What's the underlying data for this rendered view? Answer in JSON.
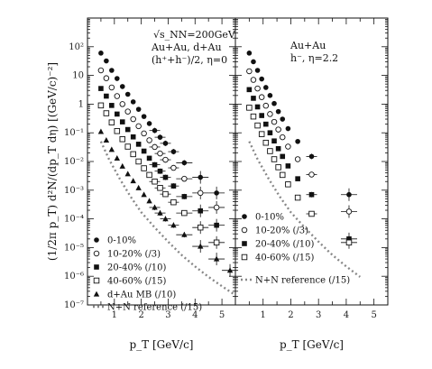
{
  "chart_data": [
    {
      "type": "scatter",
      "xlabel": "p_T [GeV/c]",
      "ylabel": "(1/2π p_T) d²N/(dp_T dη) [(GeV/c)⁻²]",
      "ytype": "log",
      "xlim": [
        0,
        5.5
      ],
      "ylim": [
        1e-07,
        1000
      ],
      "xticks": [
        "1",
        "2",
        "3",
        "4",
        "5"
      ],
      "yticks": [
        "10²",
        "10",
        "1",
        "10⁻¹",
        "10⁻²",
        "10⁻³",
        "10⁻⁴",
        "10⁻⁵",
        "10⁻⁶",
        "10⁻⁷"
      ],
      "annotations": [
        "√s_NN=200GeV",
        "Au+Au, d+Au",
        "(h⁺+h⁻)/2, η=0"
      ],
      "series": [
        {
          "name": "0-10%",
          "marker": "filled-circle",
          "x": [
            0.5,
            0.7,
            0.9,
            1.1,
            1.3,
            1.5,
            1.7,
            1.9,
            2.1,
            2.3,
            2.5,
            2.7,
            2.9,
            3.2,
            3.6,
            4.2,
            4.8
          ],
          "y": [
            60,
            32,
            15,
            7.8,
            4.1,
            2.2,
            1.2,
            0.66,
            0.37,
            0.21,
            0.12,
            0.07,
            0.043,
            0.022,
            0.009,
            0.0028,
            0.0008
          ]
        },
        {
          "name": "10-20% (/3)",
          "marker": "open-circle",
          "x": [
            0.5,
            0.7,
            0.9,
            1.1,
            1.3,
            1.5,
            1.7,
            1.9,
            2.1,
            2.3,
            2.5,
            2.7,
            2.9,
            3.2,
            3.6,
            4.2,
            4.8
          ],
          "y": [
            15,
            8,
            3.8,
            1.9,
            1.0,
            0.55,
            0.3,
            0.17,
            0.095,
            0.055,
            0.032,
            0.019,
            0.0115,
            0.006,
            0.0025,
            0.0008,
            0.00025
          ]
        },
        {
          "name": "20-40% (/10)",
          "marker": "filled-square",
          "x": [
            0.5,
            0.7,
            0.9,
            1.1,
            1.3,
            1.5,
            1.7,
            1.9,
            2.1,
            2.3,
            2.5,
            2.7,
            2.9,
            3.2,
            3.6,
            4.2,
            4.8
          ],
          "y": [
            3.5,
            1.9,
            0.9,
            0.45,
            0.24,
            0.13,
            0.072,
            0.04,
            0.023,
            0.013,
            0.0077,
            0.0046,
            0.0028,
            0.0014,
            0.0006,
            0.00019,
            6e-05
          ]
        },
        {
          "name": "40-60% (/15)",
          "marker": "open-square",
          "x": [
            0.5,
            0.7,
            0.9,
            1.1,
            1.3,
            1.5,
            1.7,
            1.9,
            2.1,
            2.3,
            2.5,
            2.7,
            2.9,
            3.2,
            3.6,
            4.2,
            4.8
          ],
          "y": [
            0.9,
            0.48,
            0.23,
            0.115,
            0.06,
            0.033,
            0.018,
            0.01,
            0.0058,
            0.0034,
            0.002,
            0.0012,
            0.00073,
            0.00038,
            0.00016,
            5e-05,
            1.5e-05
          ]
        },
        {
          "name": "d+Au MB (/10)",
          "marker": "filled-triangle",
          "x": [
            0.5,
            0.7,
            0.9,
            1.1,
            1.3,
            1.5,
            1.7,
            1.9,
            2.1,
            2.3,
            2.5,
            2.7,
            2.9,
            3.2,
            3.6,
            4.2,
            4.8,
            5.3
          ],
          "y": [
            0.11,
            0.055,
            0.026,
            0.013,
            0.0068,
            0.0037,
            0.0021,
            0.0012,
            0.0007,
            0.00042,
            0.00025,
            0.00016,
            0.0001,
            6e-05,
            2.8e-05,
            1.1e-05,
            4e-06,
            1.6e-06
          ]
        },
        {
          "name": "N+N reference (/15)",
          "marker": "dashed-line",
          "x": [
            0.5,
            0.8,
            1.2,
            1.6,
            2.0,
            2.5,
            3.0,
            3.5,
            4.0,
            4.5,
            5.0,
            5.5
          ],
          "y": [
            0.05,
            0.012,
            0.0025,
            0.0006,
            0.00017,
            5e-05,
            1.6e-05,
            5.5e-06,
            2.2e-06,
            9.5e-07,
            4.5e-07,
            2.2e-07
          ]
        }
      ]
    },
    {
      "type": "scatter",
      "xlabel": "p_T [GeV/c]",
      "ytype": "log",
      "xlim": [
        0,
        5.5
      ],
      "ylim": [
        1e-07,
        1000
      ],
      "xticks": [
        "1",
        "2",
        "3",
        "4",
        "5"
      ],
      "annotations": [
        "Au+Au",
        "h⁻, η=2.2"
      ],
      "series": [
        {
          "name": "0-10%",
          "marker": "filled-circle",
          "x": [
            0.5,
            0.65,
            0.8,
            0.95,
            1.1,
            1.25,
            1.4,
            1.55,
            1.7,
            1.9,
            2.25,
            2.75,
            4.1
          ],
          "y": [
            60,
            30,
            15,
            7.5,
            3.8,
            2.0,
            1.05,
            0.55,
            0.3,
            0.14,
            0.05,
            0.015,
            0.0007
          ]
        },
        {
          "name": "10-20% (/3)",
          "marker": "open-circle",
          "x": [
            0.5,
            0.65,
            0.8,
            0.95,
            1.1,
            1.25,
            1.4,
            1.55,
            1.7,
            1.9,
            2.25,
            2.75,
            4.1
          ],
          "y": [
            14,
            7,
            3.5,
            1.75,
            0.88,
            0.45,
            0.24,
            0.13,
            0.07,
            0.033,
            0.012,
            0.0035,
            0.00018
          ]
        },
        {
          "name": "20-40% (/10)",
          "marker": "filled-square",
          "x": [
            0.5,
            0.65,
            0.8,
            0.95,
            1.1,
            1.25,
            1.4,
            1.55,
            1.7,
            1.9,
            2.25,
            2.75,
            4.1
          ],
          "y": [
            3.2,
            1.6,
            0.8,
            0.4,
            0.2,
            0.1,
            0.052,
            0.028,
            0.015,
            0.007,
            0.0025,
            0.0007,
            2e-05
          ]
        },
        {
          "name": "40-60% (/15)",
          "marker": "open-square",
          "x": [
            0.5,
            0.65,
            0.8,
            0.95,
            1.1,
            1.25,
            1.4,
            1.55,
            1.7,
            1.9,
            2.25,
            2.75,
            4.1
          ],
          "y": [
            0.75,
            0.37,
            0.18,
            0.09,
            0.045,
            0.023,
            0.012,
            0.0063,
            0.0034,
            0.0016,
            0.00055,
            0.00015,
            1.5e-05
          ]
        },
        {
          "name": "N+N reference (/15)",
          "marker": "dashed-line",
          "x": [
            0.5,
            0.8,
            1.2,
            1.6,
            2.0,
            2.5,
            3.0,
            3.5,
            4.0,
            4.5
          ],
          "y": [
            0.05,
            0.012,
            0.0025,
            0.0006,
            0.00017,
            5e-05,
            1.6e-05,
            5.5e-06,
            2.2e-06,
            9.5e-07
          ]
        }
      ]
    }
  ]
}
